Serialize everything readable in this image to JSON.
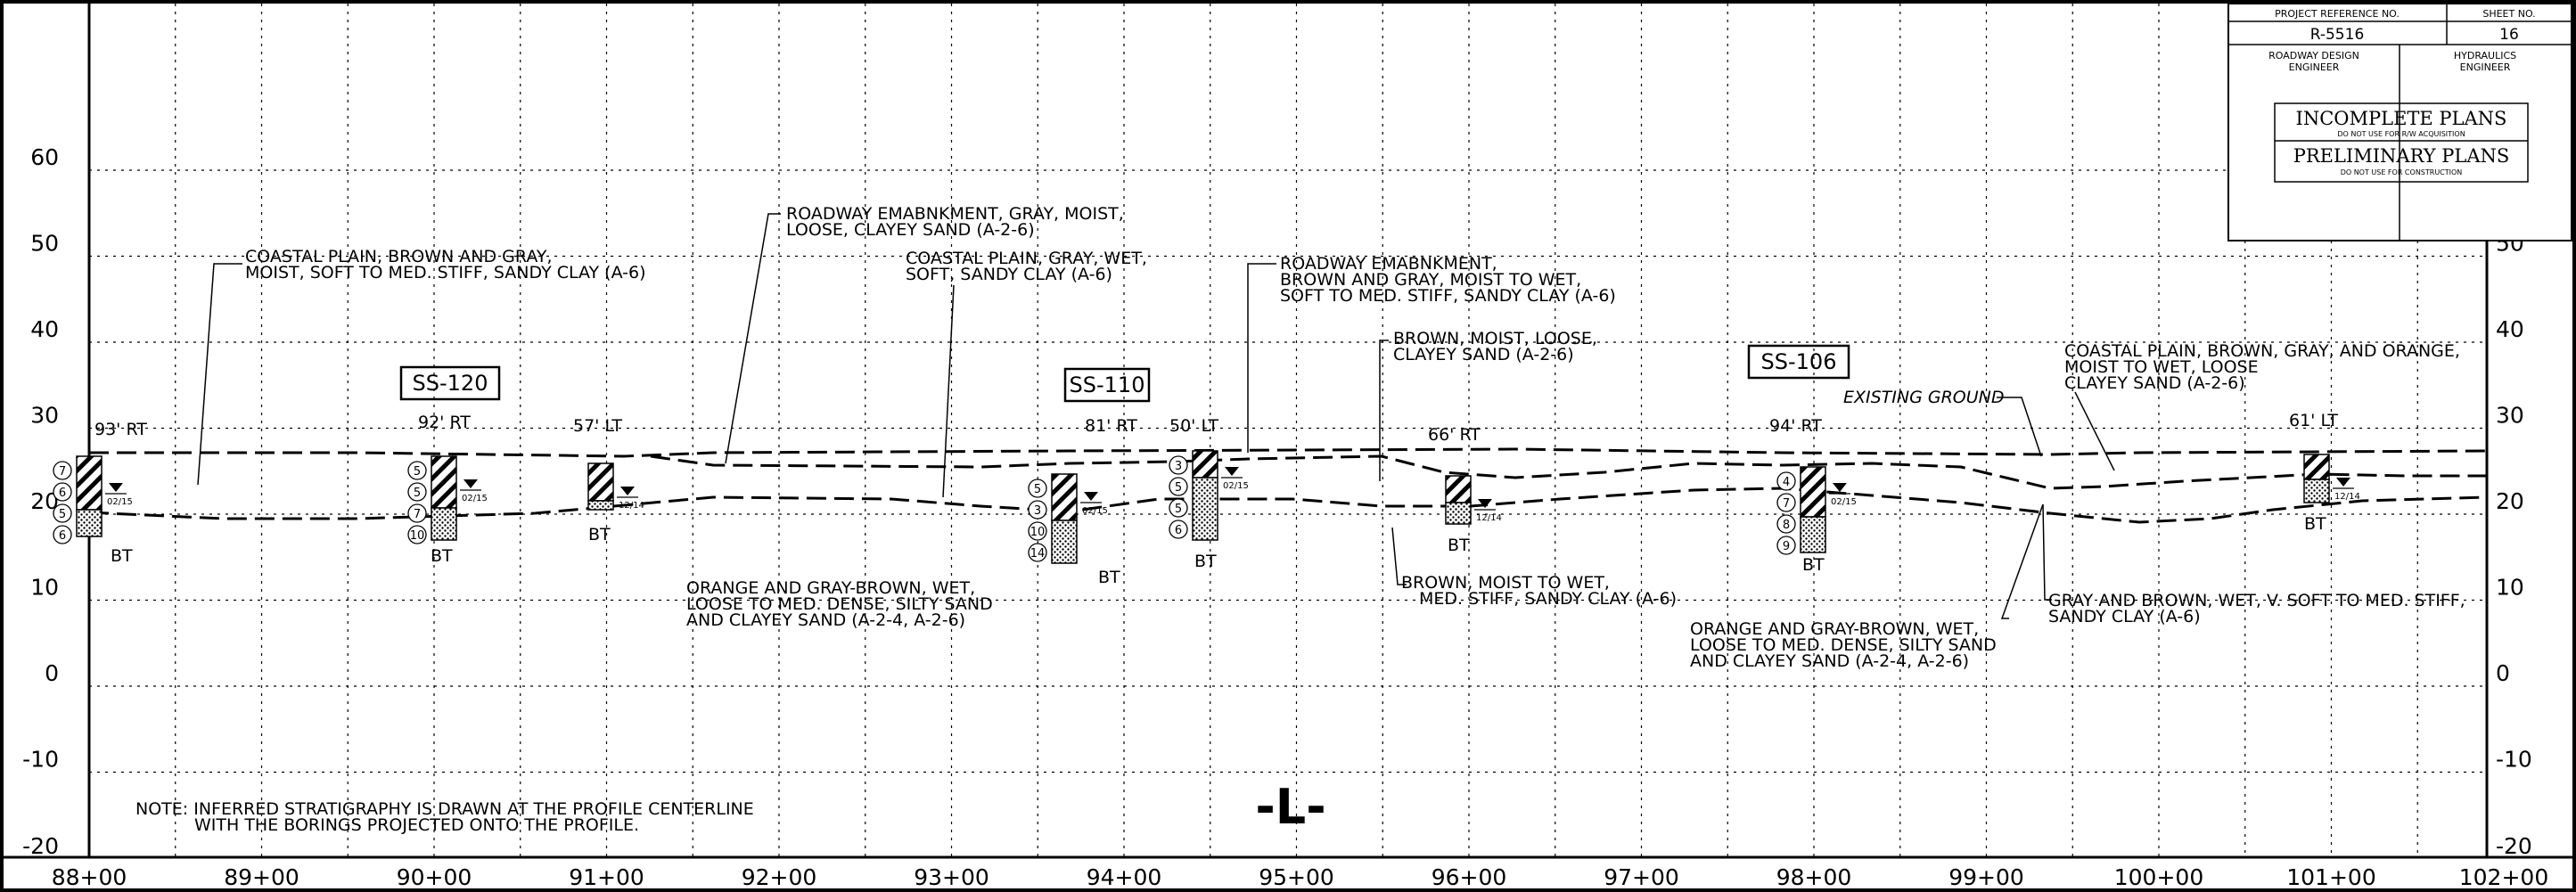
{
  "title_block": {
    "project_ref_label": "PROJECT REFERENCE NO.",
    "project_ref": "R-5516",
    "sheet_no_label": "SHEET NO.",
    "sheet_no": "16",
    "roadway_label_1": "ROADWAY DESIGN",
    "roadway_label_2": "ENGINEER",
    "hydraulics_label_1": "HYDRAULICS",
    "hydraulics_label_2": "ENGINEER",
    "stamp_1": "INCOMPLETE PLANS",
    "stamp_1_sub": "DO NOT USE FOR R/W ACQUISITION",
    "stamp_2": "PRELIMINARY PLANS",
    "stamp_2_sub": "DO NOT USE FOR CONSTRUCTION"
  },
  "axes": {
    "elev_labels": [
      "60",
      "50",
      "40",
      "30",
      "20",
      "10",
      "0",
      "-10",
      "-20"
    ],
    "station_labels": [
      "88+00",
      "89+00",
      "90+00",
      "91+00",
      "92+00",
      "93+00",
      "94+00",
      "95+00",
      "96+00",
      "97+00",
      "98+00",
      "99+00",
      "100+00",
      "101+00",
      "102+00"
    ]
  },
  "alignment_label": "-L-",
  "note": {
    "line1": "NOTE: INFERRED STRATIGRAPHY IS DRAWN AT THE PROFILE CENTERLINE",
    "line2": "WITH THE BORINGS PROJECTED ONTO THE PROFILE."
  },
  "boxes": [
    "SS-120",
    "SS-110",
    "SS-106"
  ],
  "offsets": [
    "93' RT",
    "92' RT",
    "57' LT",
    "81' RT",
    "50' LT",
    "66' RT",
    "94' RT",
    "61' LT"
  ],
  "bt": "BT",
  "existing_ground": "EXISTING GROUND",
  "notes": {
    "n1": [
      "COASTAL PLAIN, BROWN AND GRAY,",
      "MOIST, SOFT TO MED. STIFF, SANDY CLAY (A-6)"
    ],
    "n2": [
      "ROADWAY EMABNKMENT, GRAY, MOIST,",
      "LOOSE, CLAYEY SAND (A-2-6)"
    ],
    "n3": [
      "COASTAL PLAIN, GRAY, WET,",
      "SOFT, SANDY CLAY (A-6)"
    ],
    "n4": [
      "ROADWAY EMABNKMENT,",
      "BROWN AND GRAY, MOIST TO WET,",
      "SOFT TO MED. STIFF, SANDY CLAY (A-6)"
    ],
    "n5": [
      "BROWN, MOIST, LOOSE,",
      "CLAYEY SAND (A-2-6)"
    ],
    "n6": [
      "COASTAL PLAIN, BROWN, GRAY, AND ORANGE,",
      "MOIST TO WET, LOOSE",
      "CLAYEY SAND (A-2-6)"
    ],
    "n7": [
      "ORANGE AND GRAY-BROWN, WET,",
      "LOOSE TO MED. DENSE, SILTY SAND",
      "AND CLAYEY SAND (A-2-4, A-2-6)"
    ],
    "n8": [
      "BROWN, MOIST TO WET,",
      "MED. STIFF, SANDY CLAY (A-6)"
    ],
    "n9": [
      "ORANGE AND GRAY-BROWN, WET,",
      "LOOSE TO MED. DENSE, SILTY SAND",
      "AND CLAYEY SAND (A-2-4, A-2-6)"
    ],
    "n10": [
      "GRAY AND BROWN, WET, V. SOFT TO MED. STIFF,",
      "SANDY CLAY (A-6)"
    ]
  },
  "borings": [
    {
      "n": [
        "7",
        "6",
        "5",
        "6"
      ],
      "water": "02/15"
    },
    {
      "n": [
        "5",
        "5",
        "7",
        "10"
      ],
      "water": "02/15"
    },
    {
      "n": [],
      "water": "12/14"
    },
    {
      "n": [
        "5",
        "3",
        "10",
        "14"
      ],
      "water": "02/15"
    },
    {
      "n": [
        "3",
        "5",
        "5",
        "6"
      ],
      "water": "02/15"
    },
    {
      "n": [],
      "water": "12/14"
    },
    {
      "n": [
        "4",
        "7",
        "8",
        "9"
      ],
      "water": "02/15"
    },
    {
      "n": [],
      "water": "12/14"
    }
  ]
}
